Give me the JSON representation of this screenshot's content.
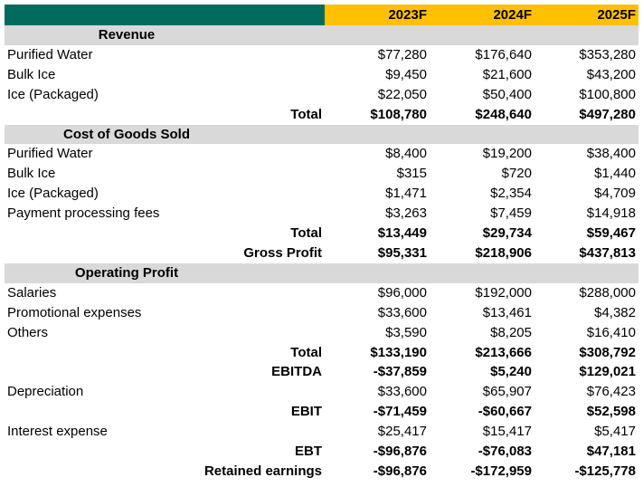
{
  "header": {
    "years": [
      "2023F",
      "2024F",
      "2025F"
    ]
  },
  "sections": [
    {
      "title": "Revenue",
      "title_offset": 0,
      "rows": [
        {
          "label": "Purified Water",
          "values": [
            "$77,280",
            "$176,640",
            "$353,280"
          ]
        },
        {
          "label": "Bulk Ice",
          "values": [
            "$9,450",
            "$21,600",
            "$43,200"
          ]
        },
        {
          "label": "Ice (Packaged)",
          "values": [
            "$22,050",
            "$50,400",
            "$100,800"
          ]
        },
        {
          "label": "Total",
          "values": [
            "$108,780",
            "$248,640",
            "$497,280"
          ],
          "bold": true
        }
      ]
    },
    {
      "title": "Cost of Goods Sold",
      "rows": [
        {
          "label": "Purified Water",
          "values": [
            "$8,400",
            "$19,200",
            "$38,400"
          ]
        },
        {
          "label": "Bulk Ice",
          "values": [
            "$315",
            "$720",
            "$1,440"
          ]
        },
        {
          "label": "Ice (Packaged)",
          "values": [
            "$1,471",
            "$2,354",
            "$4,709"
          ]
        },
        {
          "label": "Payment processing fees",
          "values": [
            "$3,263",
            "$7,459",
            "$14,918"
          ]
        },
        {
          "label": "Total",
          "values": [
            "$13,449",
            "$29,734",
            "$59,467"
          ],
          "bold": true
        },
        {
          "label": "Gross Profit",
          "values": [
            "$95,331",
            "$218,906",
            "$437,813"
          ],
          "bold": true
        }
      ]
    },
    {
      "title": "Operating Profit",
      "rows": [
        {
          "label": "Salaries",
          "values": [
            "$96,000",
            "$192,000",
            "$288,000"
          ]
        },
        {
          "label": "Promotional expenses",
          "values": [
            "$33,600",
            "$13,461",
            "$4,382"
          ]
        },
        {
          "label": "Others",
          "values": [
            "$3,590",
            "$8,205",
            "$16,410"
          ]
        },
        {
          "label": "Total",
          "values": [
            "$133,190",
            "$213,666",
            "$308,792"
          ],
          "bold": true
        },
        {
          "label": "EBITDA",
          "values": [
            "-$37,859",
            "$5,240",
            "$129,021"
          ],
          "bold": true
        },
        {
          "label": "Depreciation",
          "values": [
            "$33,600",
            "$65,907",
            "$76,423"
          ]
        },
        {
          "label": "EBIT",
          "values": [
            "-$71,459",
            "-$60,667",
            "$52,598"
          ],
          "bold": true
        },
        {
          "label": "Interest expense",
          "values": [
            "$25,417",
            "$15,417",
            "$5,417"
          ]
        },
        {
          "label": "EBT",
          "values": [
            "-$96,876",
            "-$76,083",
            "$47,181"
          ],
          "bold": true
        },
        {
          "label": "Retained earnings",
          "values": [
            "-$96,876",
            "-$172,959",
            "-$125,778"
          ],
          "bold": true
        }
      ]
    }
  ]
}
